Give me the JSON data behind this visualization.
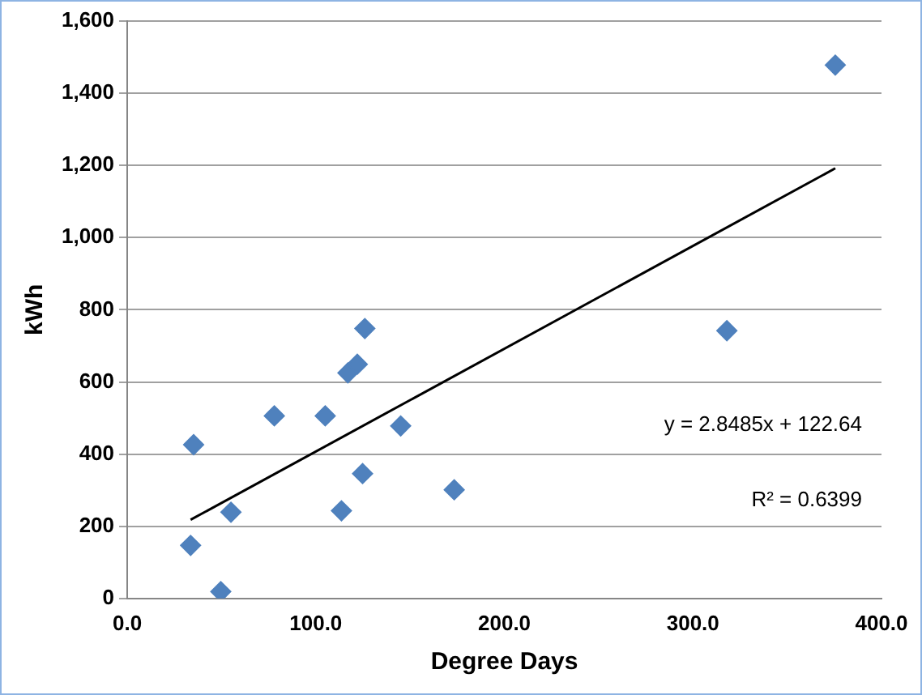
{
  "chart_data": {
    "type": "scatter",
    "xlabel": "Degree Days",
    "ylabel": "kWh",
    "series": [
      {
        "color": "#4f81bd",
        "marker": "diamond",
        "x": [
          33.6,
          35.2,
          49.6,
          55,
          78,
          105,
          113.6,
          117,
          122,
          124.8,
          126,
          145,
          173.4,
          318,
          375.5
        ],
        "values": [
          147,
          426,
          19,
          239,
          506,
          506,
          243,
          625,
          649,
          346,
          748,
          478,
          301,
          742,
          1478
        ]
      },
      {
        "type": "line",
        "color": "#000000",
        "marker": "none",
        "x": [
          33.6,
          375.5
        ],
        "values": [
          218,
          1192
        ]
      }
    ],
    "xlim": [
      0,
      400
    ],
    "xticks": [
      {
        "value": 0,
        "label": "0.0"
      },
      {
        "value": 100,
        "label": "100.0"
      },
      {
        "value": 200,
        "label": "200.0"
      },
      {
        "value": 300,
        "label": "300.0"
      },
      {
        "value": 400,
        "label": "400.0"
      }
    ],
    "ylim": [
      0,
      1600
    ],
    "yticks": [
      0,
      200,
      400,
      600,
      800,
      {
        "value": 1000,
        "label": "1,000"
      },
      {
        "value": 1200,
        "label": "1,200"
      },
      {
        "value": 1400,
        "label": "1,400"
      },
      {
        "value": 1600,
        "label": "1,600"
      }
    ],
    "grid": "y",
    "legend": false,
    "annotations": [
      "y = 2.8485x + 122.64",
      "R² = 0.6399"
    ]
  }
}
